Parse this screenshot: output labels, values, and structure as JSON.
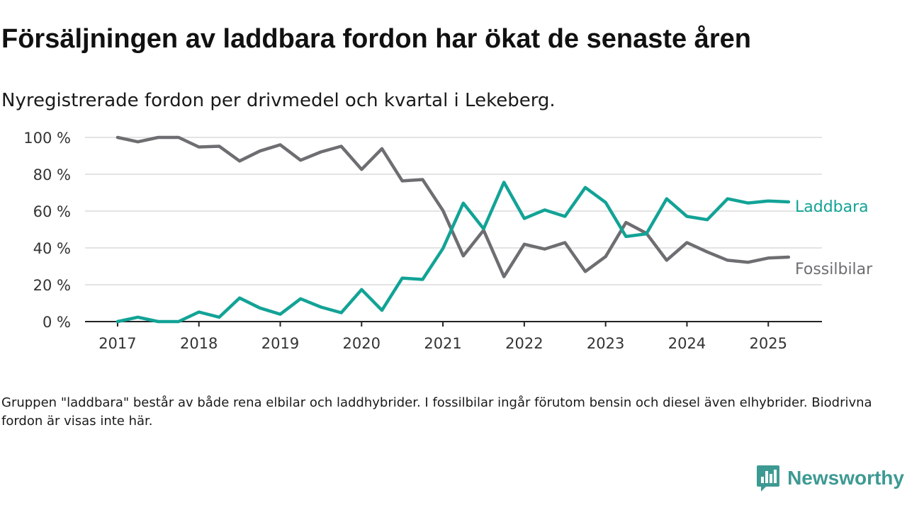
{
  "header": {
    "title": "Försäljningen av laddbara fordon har ökat de senaste åren",
    "subtitle": "Nyregistrerade fordon per drivmedel och kvartal i Lekeberg."
  },
  "footer": {
    "note": "Gruppen \"laddbara\" består av både rena elbilar och laddhybrider. I fossilbilar ingår förutom bensin och diesel även elhybrider. Biodrivna fordon är visas inte här.",
    "brand": "Newsworthy"
  },
  "colors": {
    "laddbara": "#12a396",
    "fossil": "#6e6e72",
    "grid": "#dcdcdc",
    "axis": "#222222",
    "brand": "#3d9a93"
  },
  "chart_data": {
    "type": "line",
    "title": "Försäljningen av laddbara fordon har ökat de senaste åren",
    "subtitle": "Nyregistrerade fordon per drivmedel och kvartal i Lekeberg.",
    "xlabel": "",
    "ylabel": "",
    "x_ticks": [
      "2017",
      "2018",
      "2019",
      "2020",
      "2021",
      "2022",
      "2023",
      "2024",
      "2025"
    ],
    "y_ticks": [
      "0 %",
      "20 %",
      "40 %",
      "60 %",
      "80 %",
      "100 %"
    ],
    "ylim": [
      0,
      100
    ],
    "xlim": [
      2016.6,
      2025.66
    ],
    "grid": true,
    "x": [
      2017.0,
      2017.25,
      2017.5,
      2017.75,
      2018.0,
      2018.25,
      2018.5,
      2018.75,
      2019.0,
      2019.25,
      2019.5,
      2019.75,
      2020.0,
      2020.25,
      2020.5,
      2020.75,
      2021.0,
      2021.25,
      2021.5,
      2021.75,
      2022.0,
      2022.25,
      2022.5,
      2022.75,
      2023.0,
      2023.25,
      2023.5,
      2023.75,
      2024.0,
      2024.25,
      2024.5,
      2024.75,
      2025.0,
      2025.25
    ],
    "series": [
      {
        "name": "Laddbara",
        "color": "#12a396",
        "values": [
          0,
          2.4,
          0,
          0,
          5.2,
          2.4,
          12.8,
          7.4,
          4,
          12.4,
          7.9,
          4.8,
          17.4,
          6.1,
          23.6,
          22.9,
          39.7,
          64.3,
          50.4,
          75.6,
          56,
          60.6,
          57.1,
          72.8,
          64.7,
          46.2,
          47.6,
          66.7,
          57.1,
          55.3,
          66.7,
          64.4,
          65.5,
          65
        ]
      },
      {
        "name": "Fossilbilar",
        "color": "#6e6e72",
        "values": [
          100,
          97.6,
          100,
          100,
          94.8,
          95.2,
          87.2,
          92.6,
          96,
          87.6,
          92.1,
          95.2,
          82.6,
          93.9,
          76.4,
          77.1,
          60.3,
          35.7,
          49.6,
          24.4,
          42,
          39.4,
          42.9,
          27.2,
          35.3,
          53.8,
          48,
          33.3,
          42.9,
          37.8,
          33.3,
          32.2,
          34.5,
          35
        ]
      }
    ]
  }
}
